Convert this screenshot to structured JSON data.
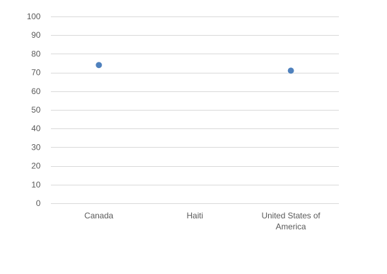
{
  "chart_data": {
    "type": "scatter",
    "title": "",
    "xlabel": "",
    "ylabel": "",
    "categories": [
      "Canada",
      "Haiti",
      "United States of America"
    ],
    "series": [
      {
        "values": [
          74,
          null,
          71
        ]
      }
    ],
    "ylim": [
      0,
      100
    ],
    "yticks": [
      0,
      10,
      20,
      30,
      40,
      50,
      60,
      70,
      80,
      90,
      100
    ],
    "ytick_labels": [
      "0",
      "10",
      "20",
      "30",
      "40",
      "50",
      "60",
      "70",
      "80",
      "90",
      "100"
    ],
    "grid": true,
    "legend": "none",
    "marker_color": "#4f81bd"
  }
}
